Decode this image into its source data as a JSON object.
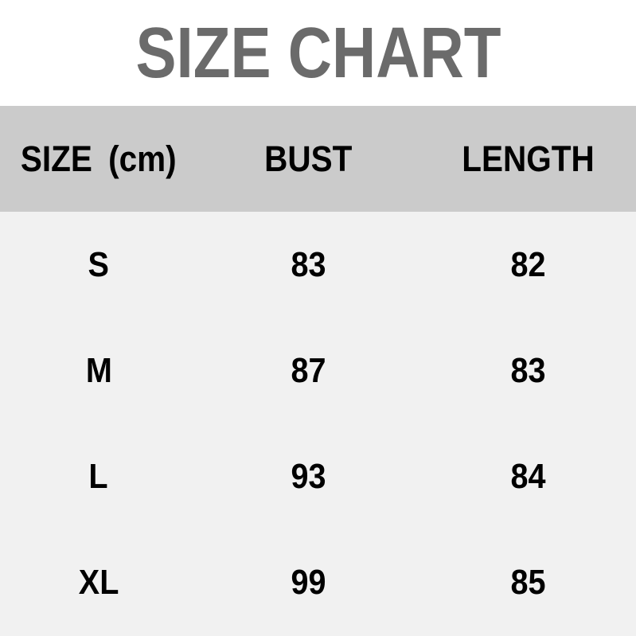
{
  "title": "SIZE CHART",
  "chart_data": {
    "type": "table",
    "title": "SIZE CHART",
    "columns": [
      "SIZE (cm)",
      "BUST",
      "LENGTH"
    ],
    "rows": [
      [
        "S",
        83,
        82
      ],
      [
        "M",
        87,
        83
      ],
      [
        "L",
        93,
        84
      ],
      [
        "XL",
        99,
        85
      ]
    ]
  },
  "colors": {
    "title": "#6b6b6b",
    "header_bg": "#cbcbcb",
    "body_bg": "#f1f1f1",
    "text": "#000000",
    "page_bg": "#ffffff"
  }
}
